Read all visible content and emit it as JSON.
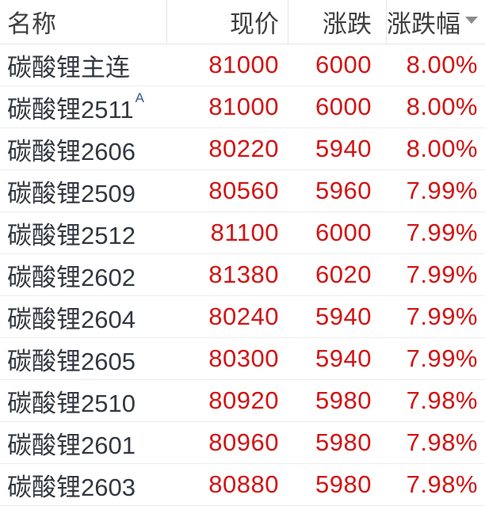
{
  "table": {
    "columns": [
      {
        "key": "name",
        "label": "名称"
      },
      {
        "key": "price",
        "label": "现价"
      },
      {
        "key": "change",
        "label": "涨跌"
      },
      {
        "key": "pct",
        "label": "涨跌幅",
        "sort": "desc",
        "sort_icon": "triangle-down-icon"
      }
    ],
    "rows": [
      {
        "name": "碳酸锂主连",
        "sup": "",
        "price": "81000",
        "change": "6000",
        "pct": "8.00%"
      },
      {
        "name": "碳酸锂2511",
        "sup": "A",
        "price": "81000",
        "change": "6000",
        "pct": "8.00%"
      },
      {
        "name": "碳酸锂2606",
        "sup": "",
        "price": "80220",
        "change": "5940",
        "pct": "8.00%"
      },
      {
        "name": "碳酸锂2509",
        "sup": "",
        "price": "80560",
        "change": "5960",
        "pct": "7.99%"
      },
      {
        "name": "碳酸锂2512",
        "sup": "",
        "price": "81100",
        "change": "6000",
        "pct": "7.99%"
      },
      {
        "name": "碳酸锂2602",
        "sup": "",
        "price": "81380",
        "change": "6020",
        "pct": "7.99%"
      },
      {
        "name": "碳酸锂2604",
        "sup": "",
        "price": "80240",
        "change": "5940",
        "pct": "7.99%"
      },
      {
        "name": "碳酸锂2605",
        "sup": "",
        "price": "80300",
        "change": "5940",
        "pct": "7.99%"
      },
      {
        "name": "碳酸锂2510",
        "sup": "",
        "price": "80920",
        "change": "5980",
        "pct": "7.98%"
      },
      {
        "name": "碳酸锂2601",
        "sup": "",
        "price": "80960",
        "change": "5980",
        "pct": "7.98%"
      },
      {
        "name": "碳酸锂2603",
        "sup": "",
        "price": "80880",
        "change": "5980",
        "pct": "7.98%"
      }
    ],
    "colors": {
      "up": "#d21414",
      "name_text": "#333840",
      "header_text": "#3f3f3f",
      "header_divider": "#e5e5e5",
      "row_divider": "#ececec",
      "superscript": "#3a5a8c",
      "sort_arrow": "#8c8c8c",
      "background": "#ffffff"
    }
  }
}
